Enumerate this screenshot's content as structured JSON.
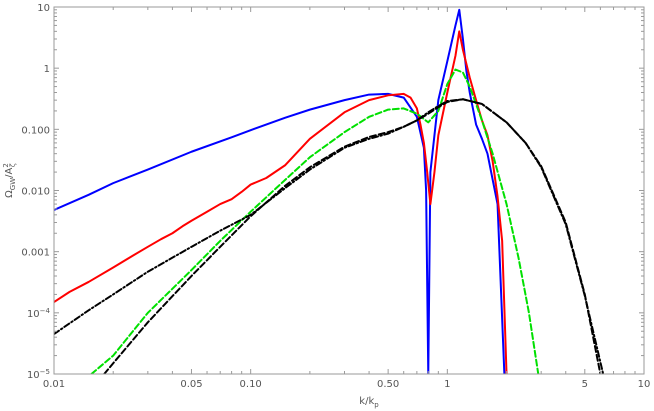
{
  "chart_data": {
    "type": "line",
    "title": "",
    "xlabel": "k/k",
    "xlabel_sub": "p",
    "ylabel": "Ω",
    "ylabel_sub": "GW",
    "ylabel_rest": "/A",
    "ylabel_sup": "2",
    "ylabel_sub2": "ζ",
    "xscale": "log",
    "yscale": "log",
    "xlim": [
      0.01,
      10
    ],
    "ylim": [
      1e-05,
      10
    ],
    "grid": false,
    "x_ticks": [
      {
        "value": 0.01,
        "label": "0.01"
      },
      {
        "value": 0.05,
        "label": "0.05"
      },
      {
        "value": 0.1,
        "label": "0.10"
      },
      {
        "value": 0.5,
        "label": "0.50"
      },
      {
        "value": 1,
        "label": "1"
      },
      {
        "value": 5,
        "label": "5"
      },
      {
        "value": 10,
        "label": "10"
      }
    ],
    "y_ticks": [
      {
        "value": 10,
        "label": "10"
      },
      {
        "value": 1,
        "label": "1"
      },
      {
        "value": 0.1,
        "label": "0.100"
      },
      {
        "value": 0.01,
        "label": "0.010"
      },
      {
        "value": 0.001,
        "label": "0.001"
      },
      {
        "value": 0.0001,
        "label": "10",
        "sup": "−4"
      },
      {
        "value": 1e-05,
        "label": "10",
        "sup": "−5"
      }
    ],
    "series": [
      {
        "color": "#0000ff",
        "dash": "solid",
        "x": [
          0.01,
          0.015,
          0.02,
          0.03,
          0.05,
          0.08,
          0.1,
          0.15,
          0.2,
          0.3,
          0.4,
          0.5,
          0.6,
          0.7,
          0.76,
          0.78,
          0.8,
          0.82,
          0.9,
          1.0,
          1.1,
          1.15,
          1.2,
          1.25,
          1.3,
          1.4,
          1.5,
          1.6,
          1.8,
          1.95
        ],
        "y": [
          0.0048,
          0.0085,
          0.0132,
          0.022,
          0.043,
          0.074,
          0.097,
          0.155,
          0.21,
          0.3,
          0.37,
          0.38,
          0.33,
          0.16,
          0.05,
          0.01,
          1e-05,
          0.02,
          0.3,
          1.3,
          5.0,
          9.0,
          3.0,
          0.9,
          0.4,
          0.12,
          0.07,
          0.04,
          0.006,
          1e-05
        ]
      },
      {
        "color": "#ff0000",
        "dash": "solid",
        "x": [
          0.01,
          0.012,
          0.015,
          0.02,
          0.025,
          0.03,
          0.035,
          0.04,
          0.045,
          0.05,
          0.06,
          0.07,
          0.08,
          0.09,
          0.1,
          0.12,
          0.15,
          0.2,
          0.3,
          0.4,
          0.5,
          0.6,
          0.65,
          0.7,
          0.73,
          0.76,
          0.79,
          0.82,
          0.86,
          0.9,
          1.0,
          1.1,
          1.15,
          1.2,
          1.3,
          1.4,
          1.5,
          1.6,
          1.7,
          1.8,
          1.9,
          2.0
        ],
        "y": [
          0.00015,
          0.00022,
          0.00032,
          0.00055,
          0.00085,
          0.0012,
          0.0016,
          0.002,
          0.0026,
          0.0032,
          0.0045,
          0.006,
          0.0072,
          0.0095,
          0.0125,
          0.016,
          0.026,
          0.07,
          0.19,
          0.3,
          0.36,
          0.38,
          0.33,
          0.22,
          0.12,
          0.06,
          0.02,
          0.006,
          0.02,
          0.08,
          0.4,
          1.6,
          4.0,
          2.0,
          0.7,
          0.3,
          0.14,
          0.08,
          0.03,
          0.008,
          0.0015,
          1e-05
        ]
      },
      {
        "color": "#00e000",
        "dash": "dashed",
        "x": [
          0.0155,
          0.02,
          0.03,
          0.05,
          0.07,
          0.1,
          0.15,
          0.2,
          0.3,
          0.4,
          0.5,
          0.6,
          0.7,
          0.8,
          0.9,
          1.0,
          1.1,
          1.2,
          1.3,
          1.5,
          1.7,
          2.0,
          2.3,
          2.6,
          2.9
        ],
        "y": [
          1e-05,
          2e-05,
          0.0001,
          0.0005,
          0.0015,
          0.0045,
          0.015,
          0.035,
          0.09,
          0.16,
          0.21,
          0.22,
          0.18,
          0.13,
          0.2,
          0.55,
          0.95,
          0.85,
          0.5,
          0.14,
          0.04,
          0.006,
          0.0008,
          0.0001,
          1e-05
        ]
      },
      {
        "color": "#000000",
        "dash": "dashed",
        "x": [
          0.018,
          0.02,
          0.03,
          0.05,
          0.07,
          0.1,
          0.15,
          0.2,
          0.3,
          0.4,
          0.5,
          0.6,
          0.7,
          0.8,
          0.9,
          1.0,
          1.2,
          1.5,
          2.0,
          2.5,
          3.0,
          4.0,
          5.0,
          6.0
        ],
        "y": [
          1e-05,
          1.5e-05,
          7e-05,
          0.0004,
          0.0012,
          0.0038,
          0.012,
          0.024,
          0.052,
          0.075,
          0.09,
          0.11,
          0.14,
          0.18,
          0.23,
          0.28,
          0.31,
          0.26,
          0.13,
          0.06,
          0.025,
          0.003,
          0.0002,
          1e-05
        ]
      },
      {
        "color": "#000000",
        "dash": "dashdot",
        "x": [
          0.01,
          0.015,
          0.02,
          0.03,
          0.05,
          0.07,
          0.1,
          0.15,
          0.2,
          0.3,
          0.4,
          0.5,
          0.6,
          0.7,
          0.8,
          0.9,
          1.0,
          1.2,
          1.5,
          2.0,
          2.5,
          3.0,
          4.0,
          5.0,
          6.2
        ],
        "y": [
          4.5e-05,
          0.00011,
          0.0002,
          0.00047,
          0.0012,
          0.0022,
          0.004,
          0.011,
          0.022,
          0.05,
          0.07,
          0.085,
          0.11,
          0.14,
          0.19,
          0.24,
          0.29,
          0.31,
          0.26,
          0.13,
          0.06,
          0.024,
          0.0028,
          0.00019,
          1e-05
        ]
      }
    ]
  }
}
